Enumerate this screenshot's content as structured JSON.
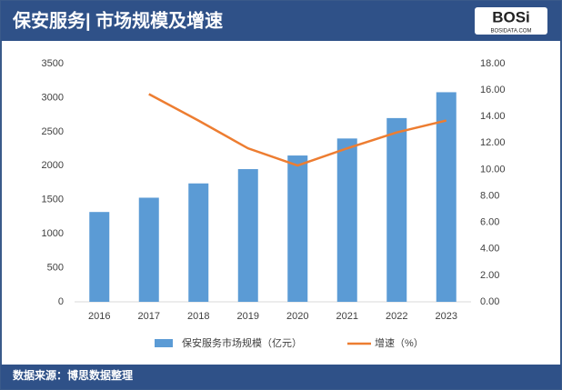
{
  "header": {
    "logo_text": "BOSi",
    "logo_url": "BOSIDATA.COM"
  },
  "footer": {
    "source": "数据来源：博思数据整理"
  },
  "chart_data": {
    "type": "bar",
    "title": "保安服务| 市场规模及增速",
    "categories": [
      "2016",
      "2017",
      "2018",
      "2019",
      "2020",
      "2021",
      "2022",
      "2023"
    ],
    "series": [
      {
        "name": "保安服务市场规模（亿元）",
        "color": "#5b9bd5",
        "values": [
          1320,
          1530,
          1740,
          1950,
          2150,
          2400,
          2700,
          3080
        ]
      },
      {
        "name": "增速（%）",
        "color": "#ed7d31",
        "type": "line",
        "axis": "y2",
        "values": [
          null,
          15.7,
          13.7,
          11.6,
          10.3,
          11.6,
          12.8,
          13.7
        ]
      }
    ],
    "ylim": [
      0,
      3500
    ],
    "yticks": [
      0,
      500,
      1000,
      1500,
      2000,
      2500,
      3000,
      3500
    ],
    "y2lim": [
      0,
      18
    ],
    "y2ticks": [
      {
        "value": 0,
        "label": "0.00"
      },
      {
        "value": 2,
        "label": "2.00"
      },
      {
        "value": 4,
        "label": "4.00"
      },
      {
        "value": 6,
        "label": "6.00"
      },
      {
        "value": 8,
        "label": "8.00"
      },
      {
        "value": 10,
        "label": "10.00"
      },
      {
        "value": 12,
        "label": "12.00"
      },
      {
        "value": 14,
        "label": "14.00"
      },
      {
        "value": 16,
        "label": "16.00"
      },
      {
        "value": 18,
        "label": "18.00"
      }
    ],
    "grid": false,
    "legend": "bottom"
  }
}
